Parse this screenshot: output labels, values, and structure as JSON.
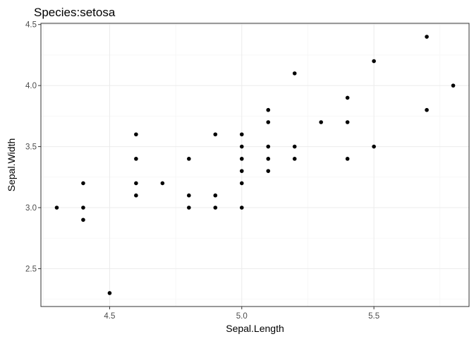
{
  "chart_data": {
    "type": "scatter",
    "title": "Species:setosa",
    "xlabel": "Sepal.Length",
    "ylabel": "Sepal.Width",
    "xlim": [
      4.24,
      5.86
    ],
    "ylim": [
      2.19,
      4.51
    ],
    "x_ticks": [
      4.5,
      5.0,
      5.5
    ],
    "x_tick_labels": [
      "4.5",
      "5.0",
      "5.5"
    ],
    "y_ticks": [
      2.5,
      3.0,
      3.5,
      4.0,
      4.5
    ],
    "y_tick_labels": [
      "2.5",
      "3.0",
      "3.5",
      "4.0",
      "4.5"
    ],
    "grid": true,
    "legend": "none",
    "point_color": "#000000",
    "points": [
      {
        "x": 4.3,
        "y": 3.0
      },
      {
        "x": 4.4,
        "y": 3.2
      },
      {
        "x": 4.4,
        "y": 3.0
      },
      {
        "x": 4.4,
        "y": 2.9
      },
      {
        "x": 4.5,
        "y": 2.3
      },
      {
        "x": 4.6,
        "y": 3.6
      },
      {
        "x": 4.6,
        "y": 3.4
      },
      {
        "x": 4.6,
        "y": 3.2
      },
      {
        "x": 4.6,
        "y": 3.1
      },
      {
        "x": 4.7,
        "y": 3.2
      },
      {
        "x": 4.8,
        "y": 3.4
      },
      {
        "x": 4.8,
        "y": 3.1
      },
      {
        "x": 4.8,
        "y": 3.0
      },
      {
        "x": 4.9,
        "y": 3.6
      },
      {
        "x": 4.9,
        "y": 3.1
      },
      {
        "x": 4.9,
        "y": 3.0
      },
      {
        "x": 5.0,
        "y": 3.6
      },
      {
        "x": 5.0,
        "y": 3.5
      },
      {
        "x": 5.0,
        "y": 3.4
      },
      {
        "x": 5.0,
        "y": 3.3
      },
      {
        "x": 5.0,
        "y": 3.2
      },
      {
        "x": 5.0,
        "y": 3.0
      },
      {
        "x": 5.1,
        "y": 3.8
      },
      {
        "x": 5.1,
        "y": 3.7
      },
      {
        "x": 5.1,
        "y": 3.5
      },
      {
        "x": 5.1,
        "y": 3.4
      },
      {
        "x": 5.1,
        "y": 3.3
      },
      {
        "x": 5.2,
        "y": 4.1
      },
      {
        "x": 5.2,
        "y": 3.5
      },
      {
        "x": 5.2,
        "y": 3.4
      },
      {
        "x": 5.3,
        "y": 3.7
      },
      {
        "x": 5.4,
        "y": 3.9
      },
      {
        "x": 5.4,
        "y": 3.7
      },
      {
        "x": 5.4,
        "y": 3.4
      },
      {
        "x": 5.5,
        "y": 4.2
      },
      {
        "x": 5.5,
        "y": 3.5
      },
      {
        "x": 5.7,
        "y": 4.4
      },
      {
        "x": 5.7,
        "y": 3.8
      },
      {
        "x": 5.8,
        "y": 4.0
      }
    ]
  }
}
